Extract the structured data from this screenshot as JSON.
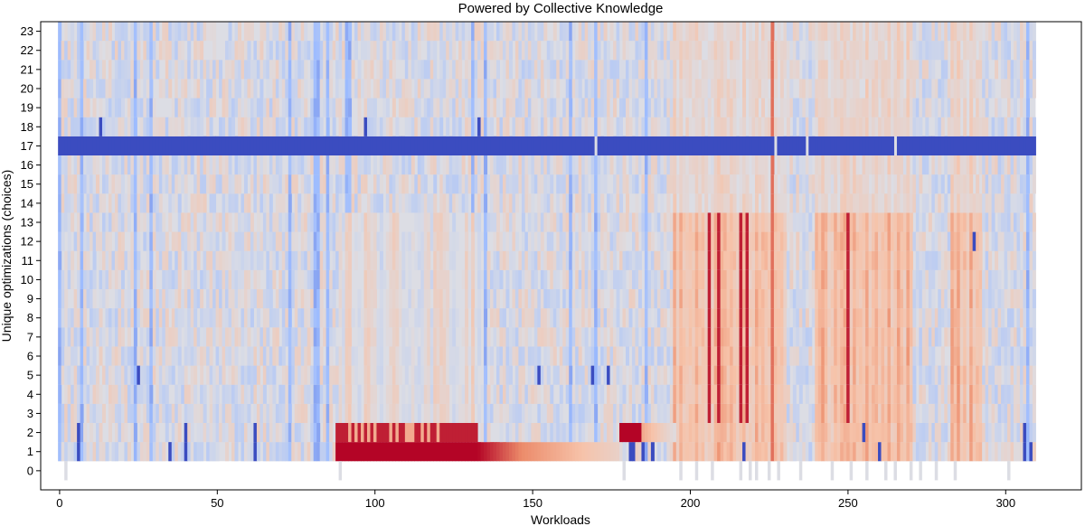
{
  "chart_data": {
    "type": "heatmap",
    "title": "Powered by Collective Knowledge",
    "xlabel": "Workloads",
    "ylabel": "Unique optimizations (choices)",
    "xlim": [
      -6,
      324
    ],
    "ylim": [
      -1,
      23.5
    ],
    "x_ticks": [
      0,
      50,
      100,
      150,
      200,
      250,
      300
    ],
    "y_ticks": [
      0,
      1,
      2,
      3,
      4,
      5,
      6,
      7,
      8,
      9,
      10,
      11,
      12,
      13,
      14,
      15,
      16,
      17,
      18,
      19,
      20,
      21,
      22,
      23
    ],
    "workloads": 310,
    "colormap": "coolwarm",
    "value_range": [
      -1,
      1
    ],
    "colors": {
      "neutral": "#dcdde4",
      "cool_strong": "#3b4cc0",
      "cool_mid": "#9dbcff",
      "warm_light": "#f6c3aa",
      "warm_mid": "#ec8b6a",
      "warm_strong": "#b40426"
    },
    "row0_markers_x": [
      2,
      89,
      179,
      197,
      202,
      207,
      216,
      219,
      221,
      225,
      228,
      235,
      245,
      251,
      256,
      262,
      265,
      270,
      273,
      278,
      284,
      301
    ],
    "row1_high_values_x_range": [
      88,
      177
    ],
    "row2_high_values_x_range": [
      88,
      132
    ],
    "row17_cool_value": -1,
    "row17_gaps_x": [
      170,
      227,
      237,
      265
    ],
    "strong_warm_columns_x": [
      206,
      209,
      216,
      218,
      250
    ],
    "warm_band_x_ranges": [
      [
        195,
        230
      ],
      [
        240,
        270
      ],
      [
        283,
        292
      ]
    ],
    "strong_cool_points": [
      {
        "x": 6,
        "y": 2
      },
      {
        "x": 6,
        "y": 1
      },
      {
        "x": 35,
        "y": 1
      },
      {
        "x": 40,
        "y": 2
      },
      {
        "x": 40,
        "y": 1
      },
      {
        "x": 62,
        "y": 2
      },
      {
        "x": 62,
        "y": 1
      },
      {
        "x": 25,
        "y": 5
      },
      {
        "x": 152,
        "y": 5
      },
      {
        "x": 169,
        "y": 5
      },
      {
        "x": 174,
        "y": 5
      },
      {
        "x": 181,
        "y": 1
      },
      {
        "x": 182,
        "y": 1
      },
      {
        "x": 185,
        "y": 1
      },
      {
        "x": 188,
        "y": 1
      },
      {
        "x": 217,
        "y": 1
      },
      {
        "x": 255,
        "y": 2
      },
      {
        "x": 260,
        "y": 1
      },
      {
        "x": 306,
        "y": 2
      },
      {
        "x": 306,
        "y": 1
      },
      {
        "x": 308,
        "y": 1
      },
      {
        "x": 13,
        "y": 18
      },
      {
        "x": 97,
        "y": 18
      },
      {
        "x": 133,
        "y": 18
      },
      {
        "x": 290,
        "y": 12
      }
    ]
  }
}
